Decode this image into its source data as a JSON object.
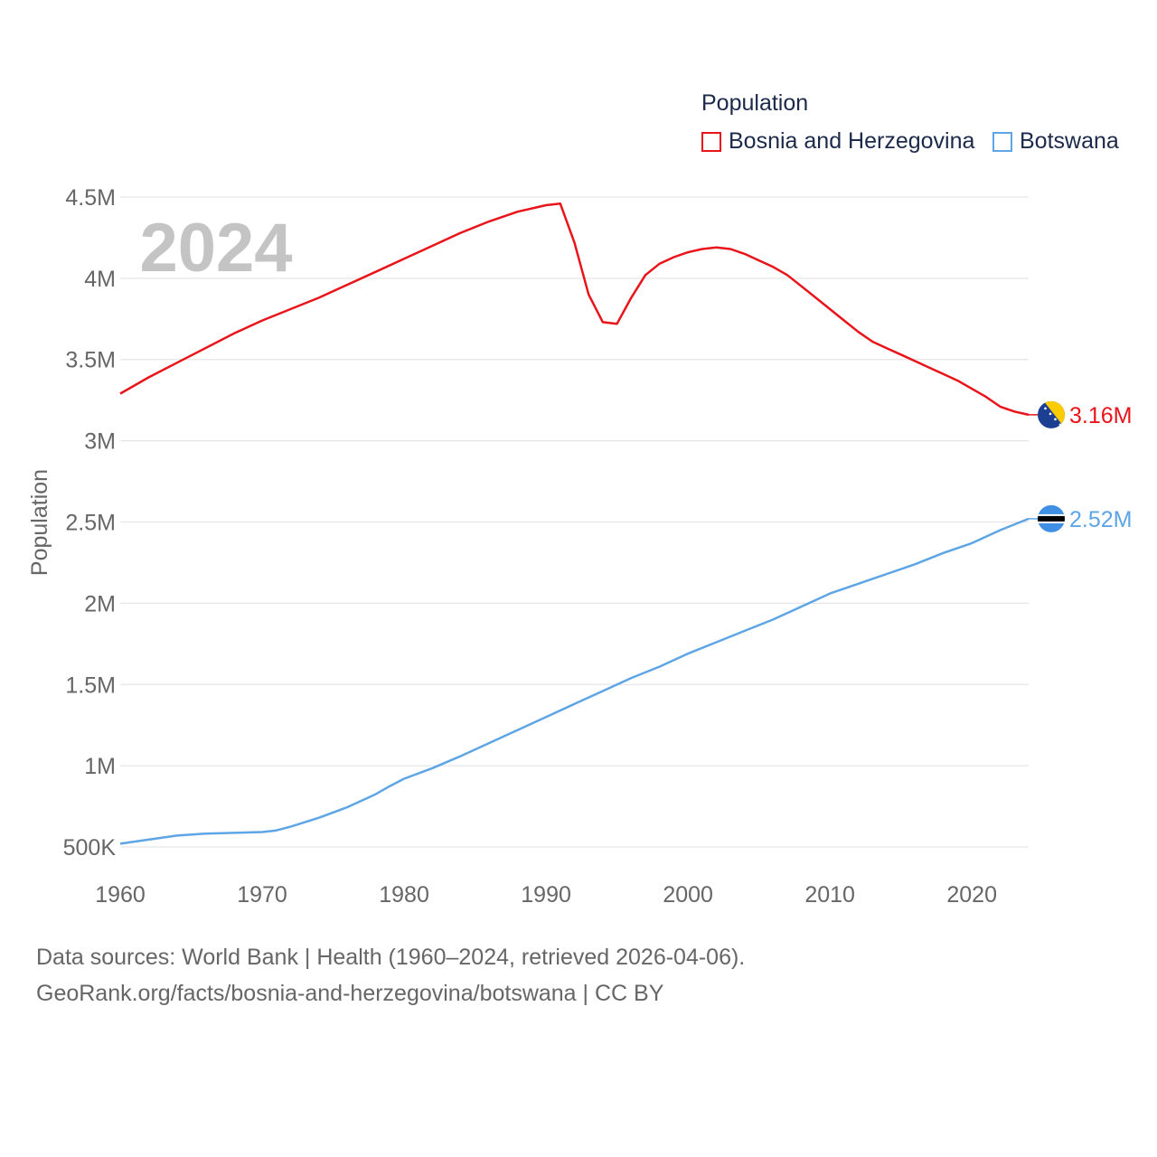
{
  "legend": {
    "title": "Population",
    "items": [
      {
        "label": "Bosnia and Herzegovina",
        "color": "#e8141a"
      },
      {
        "label": "Botswana",
        "color": "#5ea5e6"
      }
    ]
  },
  "year_watermark": "2024",
  "source": {
    "line1": "Data sources: World Bank | Health (1960–2024, retrieved 2026-04-06).",
    "line2": "GeoRank.org/facts/bosnia-and-herzegovina/botswana | CC BY"
  },
  "chart_data": {
    "type": "line",
    "title": "",
    "xlabel": "",
    "ylabel": "Population",
    "xlim": [
      1960,
      2024
    ],
    "ylim": [
      400000,
      4600000
    ],
    "x_ticks": [
      1960,
      1970,
      1980,
      1990,
      2000,
      2010,
      2020
    ],
    "x_tick_labels": [
      "1960",
      "1970",
      "1980",
      "1990",
      "2000",
      "2010",
      "2020"
    ],
    "y_ticks": [
      500000,
      1000000,
      1500000,
      2000000,
      2500000,
      3000000,
      3500000,
      4000000,
      4500000
    ],
    "y_tick_labels": [
      "500K",
      "1M",
      "1.5M",
      "2M",
      "2.5M",
      "3M",
      "3.5M",
      "4M",
      "4.5M"
    ],
    "grid": true,
    "series": [
      {
        "name": "Bosnia and Herzegovina",
        "color": "#e8141a",
        "end_label": "3.16M",
        "flag_icon": "bosnia-flag-icon",
        "points": [
          [
            1960,
            3290000
          ],
          [
            1962,
            3390000
          ],
          [
            1964,
            3480000
          ],
          [
            1966,
            3570000
          ],
          [
            1968,
            3660000
          ],
          [
            1970,
            3740000
          ],
          [
            1972,
            3810000
          ],
          [
            1974,
            3880000
          ],
          [
            1976,
            3960000
          ],
          [
            1978,
            4040000
          ],
          [
            1980,
            4120000
          ],
          [
            1982,
            4200000
          ],
          [
            1984,
            4280000
          ],
          [
            1986,
            4350000
          ],
          [
            1988,
            4410000
          ],
          [
            1990,
            4450000
          ],
          [
            1991,
            4460000
          ],
          [
            1992,
            4220000
          ],
          [
            1993,
            3900000
          ],
          [
            1994,
            3730000
          ],
          [
            1995,
            3720000
          ],
          [
            1996,
            3880000
          ],
          [
            1997,
            4020000
          ],
          [
            1998,
            4090000
          ],
          [
            1999,
            4130000
          ],
          [
            2000,
            4160000
          ],
          [
            2001,
            4180000
          ],
          [
            2002,
            4190000
          ],
          [
            2003,
            4180000
          ],
          [
            2004,
            4150000
          ],
          [
            2005,
            4110000
          ],
          [
            2006,
            4070000
          ],
          [
            2007,
            4020000
          ],
          [
            2008,
            3950000
          ],
          [
            2009,
            3880000
          ],
          [
            2010,
            3810000
          ],
          [
            2011,
            3740000
          ],
          [
            2012,
            3670000
          ],
          [
            2013,
            3610000
          ],
          [
            2014,
            3570000
          ],
          [
            2015,
            3530000
          ],
          [
            2016,
            3490000
          ],
          [
            2017,
            3450000
          ],
          [
            2018,
            3410000
          ],
          [
            2019,
            3370000
          ],
          [
            2020,
            3320000
          ],
          [
            2021,
            3270000
          ],
          [
            2022,
            3210000
          ],
          [
            2023,
            3180000
          ],
          [
            2024,
            3160000
          ]
        ]
      },
      {
        "name": "Botswana",
        "color": "#5ea5e6",
        "end_label": "2.52M",
        "flag_icon": "botswana-flag-icon",
        "points": [
          [
            1960,
            520000
          ],
          [
            1962,
            545000
          ],
          [
            1964,
            570000
          ],
          [
            1966,
            582000
          ],
          [
            1968,
            587000
          ],
          [
            1970,
            592000
          ],
          [
            1971,
            602000
          ],
          [
            1972,
            625000
          ],
          [
            1974,
            680000
          ],
          [
            1976,
            745000
          ],
          [
            1978,
            825000
          ],
          [
            1979,
            875000
          ],
          [
            1980,
            920000
          ],
          [
            1982,
            985000
          ],
          [
            1984,
            1060000
          ],
          [
            1986,
            1140000
          ],
          [
            1988,
            1220000
          ],
          [
            1990,
            1300000
          ],
          [
            1992,
            1380000
          ],
          [
            1994,
            1460000
          ],
          [
            1996,
            1540000
          ],
          [
            1998,
            1610000
          ],
          [
            2000,
            1690000
          ],
          [
            2002,
            1760000
          ],
          [
            2004,
            1830000
          ],
          [
            2006,
            1900000
          ],
          [
            2008,
            1980000
          ],
          [
            2010,
            2060000
          ],
          [
            2012,
            2120000
          ],
          [
            2014,
            2180000
          ],
          [
            2016,
            2240000
          ],
          [
            2018,
            2310000
          ],
          [
            2020,
            2370000
          ],
          [
            2022,
            2450000
          ],
          [
            2024,
            2520000
          ]
        ]
      }
    ]
  }
}
